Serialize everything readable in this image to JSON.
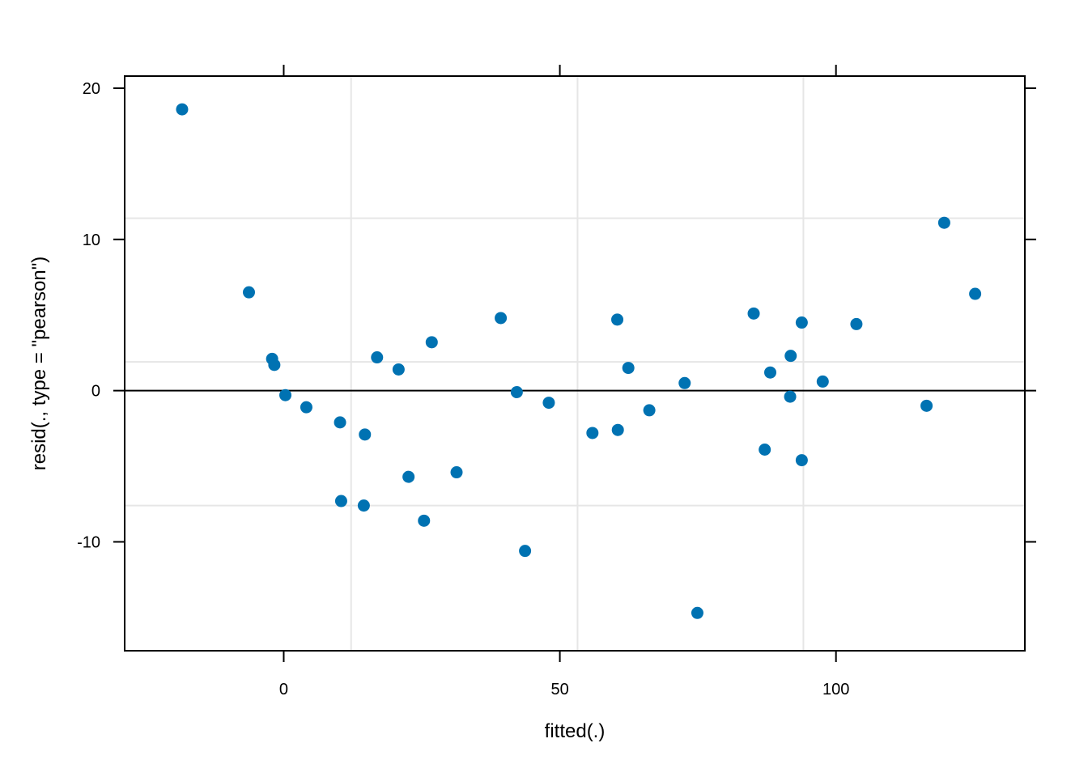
{
  "chart_data": {
    "type": "scatter",
    "title": "",
    "xlabel": "fitted(.)",
    "ylabel": "resid(., type = \"pearson\")",
    "xlim": [
      -28.8,
      134.2
    ],
    "ylim": [
      -17.2,
      20.8
    ],
    "x_ticks": [
      0,
      50,
      100
    ],
    "x_tick_labels": [
      "0",
      "50",
      "100"
    ],
    "y_ticks": [
      -10,
      0,
      10,
      20
    ],
    "y_tick_labels": [
      "-10",
      "0",
      "10",
      "20"
    ],
    "reference_line_y": 0,
    "grid": true,
    "grid_x": [
      12.2,
      53.2,
      94.1
    ],
    "grid_y": [
      -7.6,
      1.9,
      11.4
    ],
    "colors": {
      "points": "#0072B2",
      "grid": "#e6e6e6",
      "frame": "#000000"
    },
    "points": [
      {
        "x": -18.4,
        "y": 18.6
      },
      {
        "x": -6.3,
        "y": 6.5
      },
      {
        "x": -2.1,
        "y": 2.1
      },
      {
        "x": -1.7,
        "y": 1.7
      },
      {
        "x": 0.3,
        "y": -0.3
      },
      {
        "x": 4.1,
        "y": -1.1
      },
      {
        "x": 10.2,
        "y": -2.1
      },
      {
        "x": 10.4,
        "y": -7.3
      },
      {
        "x": 14.7,
        "y": -2.9
      },
      {
        "x": 14.5,
        "y": -7.6
      },
      {
        "x": 16.9,
        "y": 2.2
      },
      {
        "x": 20.8,
        "y": 1.4
      },
      {
        "x": 22.6,
        "y": -5.7
      },
      {
        "x": 25.4,
        "y": -8.6
      },
      {
        "x": 26.8,
        "y": 3.2
      },
      {
        "x": 31.3,
        "y": -5.4
      },
      {
        "x": 39.3,
        "y": 4.8
      },
      {
        "x": 42.2,
        "y": -0.1
      },
      {
        "x": 43.7,
        "y": -10.6
      },
      {
        "x": 48.0,
        "y": -0.8
      },
      {
        "x": 55.9,
        "y": -2.8
      },
      {
        "x": 60.4,
        "y": 4.7
      },
      {
        "x": 60.5,
        "y": -2.6
      },
      {
        "x": 62.4,
        "y": 1.5
      },
      {
        "x": 66.2,
        "y": -1.3
      },
      {
        "x": 72.6,
        "y": 0.5
      },
      {
        "x": 74.9,
        "y": -14.7
      },
      {
        "x": 85.1,
        "y": 5.1
      },
      {
        "x": 87.1,
        "y": -3.9
      },
      {
        "x": 88.1,
        "y": 1.2
      },
      {
        "x": 91.8,
        "y": 2.3
      },
      {
        "x": 91.7,
        "y": -0.4
      },
      {
        "x": 93.8,
        "y": 4.5
      },
      {
        "x": 93.8,
        "y": -4.6
      },
      {
        "x": 97.6,
        "y": 0.6
      },
      {
        "x": 103.7,
        "y": 4.4
      },
      {
        "x": 116.4,
        "y": -1.0
      },
      {
        "x": 119.6,
        "y": 11.1
      },
      {
        "x": 125.2,
        "y": 6.4
      }
    ]
  }
}
